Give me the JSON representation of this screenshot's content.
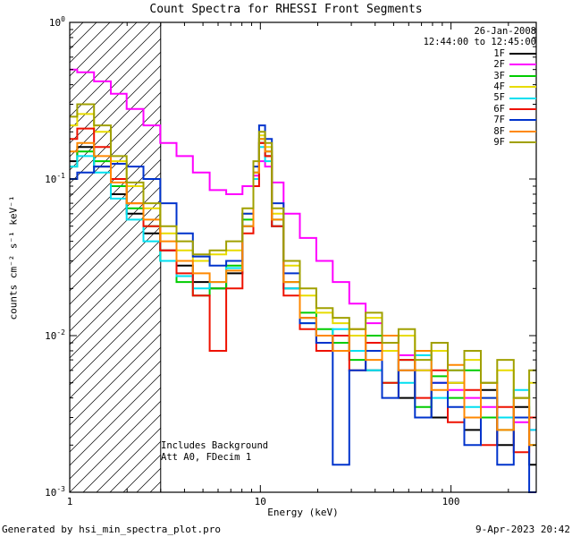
{
  "legend": {
    "date": "26-Jan-2008",
    "time": "12:44:00 to 12:45:00"
  },
  "annotations": {
    "line1": "Includes Background",
    "line2": "Att A0, FDecim 1"
  },
  "footer": {
    "left": "Generated by hsi_min_spectra_plot.pro",
    "right": "9-Apr-2023 20:42"
  },
  "chart_data": {
    "type": "line",
    "title": "Count Spectra for RHESSI Front Segments",
    "xlabel": "Energy (keV)",
    "ylabel": "counts cm⁻² s⁻¹ keV⁻¹",
    "xscale": "log",
    "yscale": "log",
    "xlim": [
      1,
      280
    ],
    "ylim": [
      0.001,
      1
    ],
    "grid": false,
    "legend_position": "top-right",
    "hatch_region": {
      "from": 1,
      "to": 3
    },
    "x_ticks": [
      {
        "v": 1,
        "label": "1"
      },
      {
        "v": 10,
        "label": "10"
      },
      {
        "v": 100,
        "label": "100"
      }
    ],
    "y_ticks": [
      {
        "v": 1,
        "base": "10",
        "exp": "0"
      },
      {
        "v": 0.1,
        "base": "10",
        "exp": "-1"
      },
      {
        "v": 0.01,
        "base": "10",
        "exp": "-2"
      },
      {
        "v": 0.001,
        "base": "10",
        "exp": "-3"
      }
    ],
    "x": [
      1.0,
      1.2,
      1.5,
      1.8,
      2.2,
      2.7,
      3.3,
      4.0,
      4.9,
      6.0,
      7.3,
      8.9,
      9.5,
      10.2,
      11.0,
      12.0,
      14.6,
      17.8,
      21.7,
      26.5,
      32.3,
      39.4,
      48.0,
      58.6,
      71.5,
      87.2,
      106.0,
      130.0,
      158.0,
      193.0,
      236.0,
      280.0
    ],
    "series": [
      {
        "name": "1F",
        "color": "#000000",
        "values": [
          0.13,
          0.16,
          0.12,
          0.08,
          0.06,
          0.045,
          0.035,
          0.028,
          0.022,
          0.02,
          0.025,
          0.05,
          0.1,
          0.17,
          0.14,
          0.05,
          0.02,
          0.013,
          0.01,
          0.008,
          0.01,
          0.006,
          0.008,
          0.004,
          0.006,
          0.003,
          0.005,
          0.0025,
          0.0045,
          0.002,
          0.0035,
          0.0015
        ]
      },
      {
        "name": "2F",
        "color": "#ff00ff",
        "values": [
          0.5,
          0.48,
          0.42,
          0.35,
          0.28,
          0.22,
          0.17,
          0.14,
          0.11,
          0.085,
          0.08,
          0.09,
          0.105,
          0.13,
          0.12,
          0.095,
          0.06,
          0.042,
          0.03,
          0.022,
          0.016,
          0.012,
          0.009,
          0.0075,
          0.006,
          0.005,
          0.0045,
          0.004,
          0.0035,
          0.003,
          0.0028,
          0.0025
        ]
      },
      {
        "name": "3F",
        "color": "#00cc00",
        "values": [
          0.12,
          0.15,
          0.13,
          0.09,
          0.065,
          0.05,
          0.03,
          0.022,
          0.018,
          0.02,
          0.028,
          0.055,
          0.11,
          0.18,
          0.15,
          0.055,
          0.022,
          0.014,
          0.011,
          0.009,
          0.007,
          0.01,
          0.005,
          0.007,
          0.0035,
          0.0055,
          0.004,
          0.006,
          0.003,
          0.0025,
          0.004,
          0.002
        ]
      },
      {
        "name": "4F",
        "color": "#e8dc00",
        "values": [
          0.22,
          0.26,
          0.2,
          0.13,
          0.09,
          0.065,
          0.045,
          0.035,
          0.03,
          0.033,
          0.035,
          0.06,
          0.12,
          0.19,
          0.16,
          0.06,
          0.028,
          0.018,
          0.014,
          0.012,
          0.01,
          0.013,
          0.008,
          0.01,
          0.006,
          0.008,
          0.005,
          0.007,
          0.004,
          0.006,
          0.003,
          0.005
        ]
      },
      {
        "name": "5F",
        "color": "#00dff0",
        "values": [
          0.12,
          0.14,
          0.11,
          0.075,
          0.055,
          0.04,
          0.03,
          0.024,
          0.02,
          0.022,
          0.027,
          0.05,
          0.1,
          0.16,
          0.13,
          0.05,
          0.02,
          0.012,
          0.009,
          0.011,
          0.008,
          0.006,
          0.009,
          0.005,
          0.0075,
          0.004,
          0.006,
          0.0035,
          0.005,
          0.003,
          0.0045,
          0.0025
        ]
      },
      {
        "name": "6F",
        "color": "#ee1100",
        "values": [
          0.18,
          0.21,
          0.16,
          0.1,
          0.07,
          0.05,
          0.035,
          0.025,
          0.018,
          0.008,
          0.02,
          0.045,
          0.09,
          0.17,
          0.14,
          0.05,
          0.018,
          0.011,
          0.008,
          0.01,
          0.006,
          0.009,
          0.005,
          0.007,
          0.004,
          0.006,
          0.0028,
          0.0045,
          0.002,
          0.0035,
          0.0018,
          0.003
        ]
      },
      {
        "name": "7F",
        "color": "#0033cc",
        "values": [
          0.1,
          0.11,
          0.12,
          0.125,
          0.12,
          0.1,
          0.07,
          0.045,
          0.032,
          0.028,
          0.03,
          0.06,
          0.12,
          0.22,
          0.18,
          0.07,
          0.025,
          0.012,
          0.009,
          0.0015,
          0.006,
          0.008,
          0.004,
          0.006,
          0.003,
          0.005,
          0.0035,
          0.002,
          0.004,
          0.0015,
          0.003,
          0.001
        ]
      },
      {
        "name": "8F",
        "color": "#ff8800",
        "values": [
          0.15,
          0.17,
          0.14,
          0.095,
          0.07,
          0.055,
          0.04,
          0.03,
          0.025,
          0.022,
          0.026,
          0.05,
          0.11,
          0.18,
          0.15,
          0.055,
          0.022,
          0.013,
          0.01,
          0.008,
          0.011,
          0.007,
          0.01,
          0.006,
          0.008,
          0.0045,
          0.0065,
          0.003,
          0.005,
          0.0025,
          0.004,
          0.002
        ]
      },
      {
        "name": "9F",
        "color": "#a0a000",
        "values": [
          0.25,
          0.3,
          0.22,
          0.14,
          0.095,
          0.07,
          0.05,
          0.04,
          0.033,
          0.035,
          0.04,
          0.065,
          0.13,
          0.2,
          0.17,
          0.065,
          0.03,
          0.02,
          0.015,
          0.013,
          0.011,
          0.014,
          0.009,
          0.011,
          0.007,
          0.009,
          0.006,
          0.008,
          0.005,
          0.007,
          0.004,
          0.006
        ]
      }
    ]
  }
}
